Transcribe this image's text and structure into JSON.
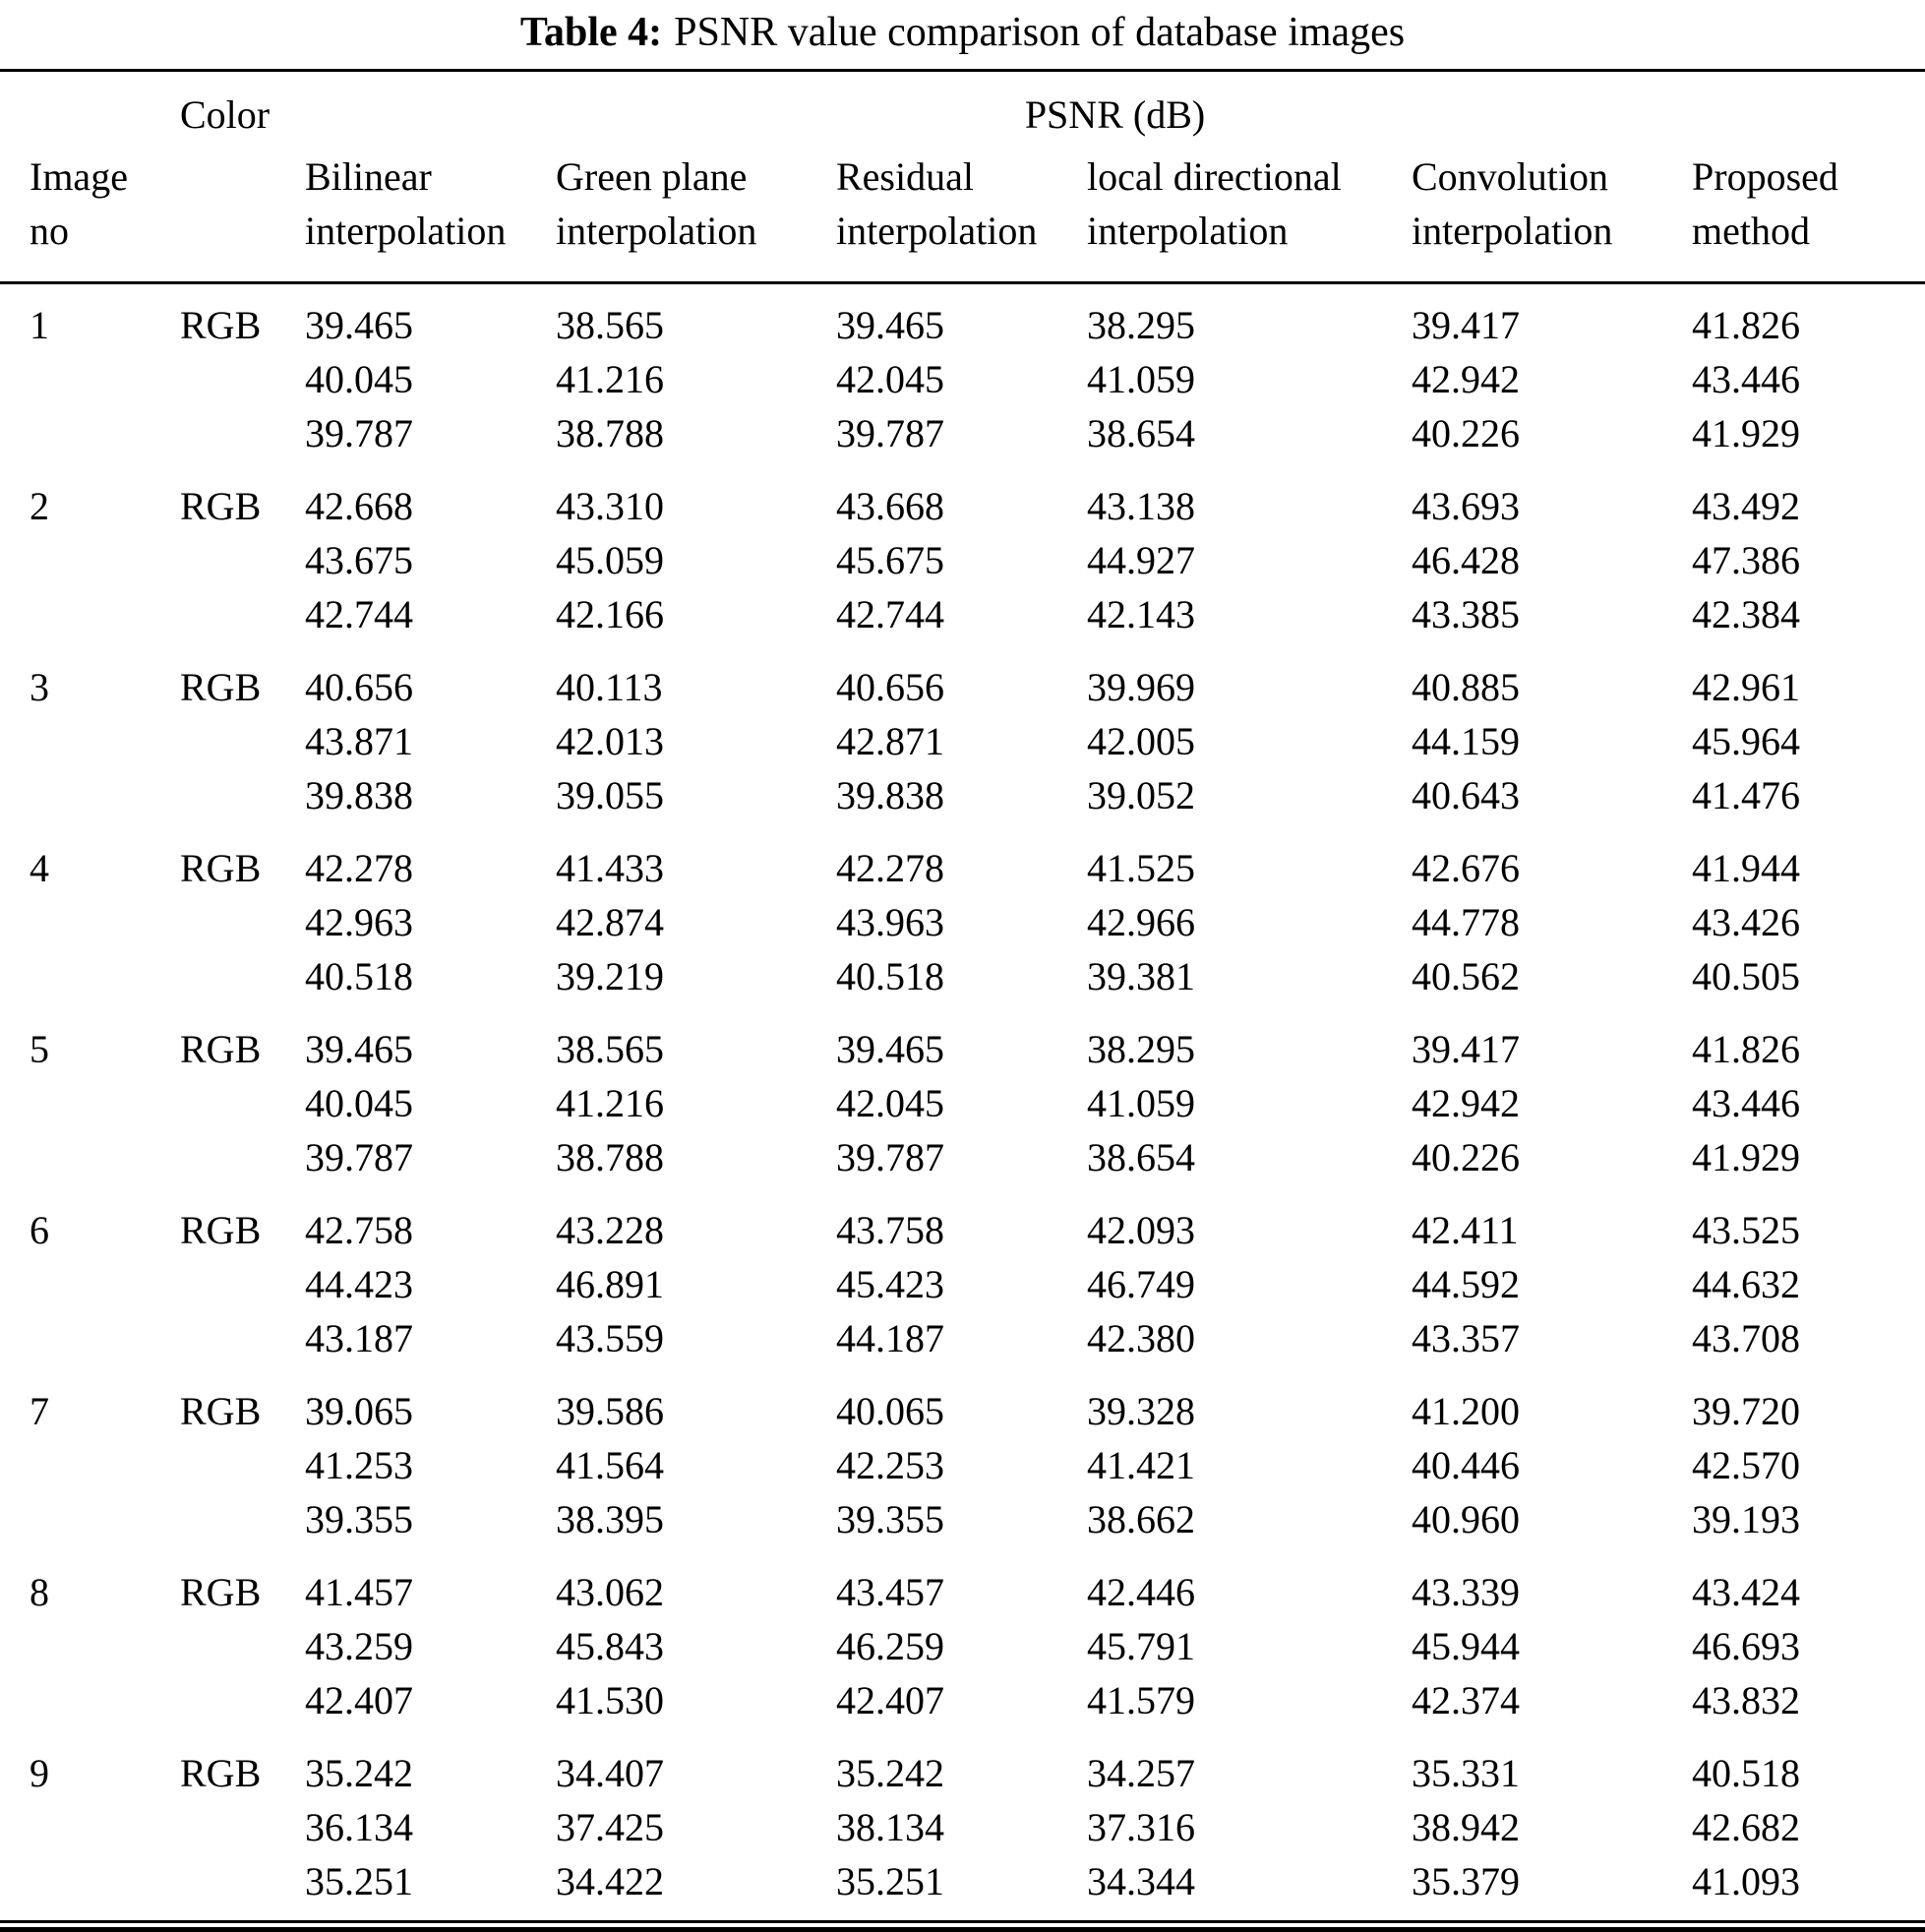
{
  "title": {
    "label": "Table 4:",
    "text": "PSNR value comparison of database images"
  },
  "header": {
    "color_label": "Color",
    "psnr_label": "PSNR (dB)",
    "image_col": {
      "line1": "Image",
      "line2": "no"
    },
    "methods": [
      {
        "line1": "Bilinear",
        "line2": "interpolation"
      },
      {
        "line1": "Green plane",
        "line2": "interpolation"
      },
      {
        "line1": "Residual",
        "line2": "interpolation"
      },
      {
        "line1": "local directional",
        "line2": "interpolation"
      },
      {
        "line1": "Convolution",
        "line2": "interpolation"
      },
      {
        "line1": "Proposed",
        "line2": "method"
      }
    ]
  },
  "rows": [
    {
      "image_no": "1",
      "color": "RGB",
      "values": [
        [
          "39.465",
          "40.045",
          "39.787"
        ],
        [
          "38.565",
          "41.216",
          "38.788"
        ],
        [
          "39.465",
          "42.045",
          "39.787"
        ],
        [
          "38.295",
          "41.059",
          "38.654"
        ],
        [
          "39.417",
          "42.942",
          "40.226"
        ],
        [
          "41.826",
          "43.446",
          "41.929"
        ]
      ]
    },
    {
      "image_no": "2",
      "color": "RGB",
      "values": [
        [
          "42.668",
          "43.675",
          "42.744"
        ],
        [
          "43.310",
          "45.059",
          "42.166"
        ],
        [
          "43.668",
          "45.675",
          "42.744"
        ],
        [
          "43.138",
          "44.927",
          "42.143"
        ],
        [
          "43.693",
          "46.428",
          "43.385"
        ],
        [
          "43.492",
          "47.386",
          "42.384"
        ]
      ]
    },
    {
      "image_no": "3",
      "color": "RGB",
      "values": [
        [
          "40.656",
          "43.871",
          "39.838"
        ],
        [
          "40.113",
          "42.013",
          "39.055"
        ],
        [
          "40.656",
          "42.871",
          "39.838"
        ],
        [
          "39.969",
          "42.005",
          "39.052"
        ],
        [
          "40.885",
          "44.159",
          "40.643"
        ],
        [
          "42.961",
          "45.964",
          "41.476"
        ]
      ]
    },
    {
      "image_no": "4",
      "color": "RGB",
      "values": [
        [
          "42.278",
          "42.963",
          "40.518"
        ],
        [
          "41.433",
          "42.874",
          "39.219"
        ],
        [
          "42.278",
          "43.963",
          "40.518"
        ],
        [
          "41.525",
          "42.966",
          "39.381"
        ],
        [
          "42.676",
          "44.778",
          "40.562"
        ],
        [
          "41.944",
          "43.426",
          "40.505"
        ]
      ]
    },
    {
      "image_no": "5",
      "color": "RGB",
      "values": [
        [
          "39.465",
          "40.045",
          "39.787"
        ],
        [
          "38.565",
          "41.216",
          "38.788"
        ],
        [
          "39.465",
          "42.045",
          "39.787"
        ],
        [
          "38.295",
          "41.059",
          "38.654"
        ],
        [
          "39.417",
          "42.942",
          "40.226"
        ],
        [
          "41.826",
          "43.446",
          "41.929"
        ]
      ]
    },
    {
      "image_no": "6",
      "color": "RGB",
      "values": [
        [
          "42.758",
          "44.423",
          "43.187"
        ],
        [
          "43.228",
          "46.891",
          "43.559"
        ],
        [
          "43.758",
          "45.423",
          "44.187"
        ],
        [
          "42.093",
          "46.749",
          "42.380"
        ],
        [
          "42.411",
          "44.592",
          "43.357"
        ],
        [
          "43.525",
          "44.632",
          "43.708"
        ]
      ]
    },
    {
      "image_no": "7",
      "color": "RGB",
      "values": [
        [
          "39.065",
          "41.253",
          "39.355"
        ],
        [
          "39.586",
          "41.564",
          "38.395"
        ],
        [
          "40.065",
          "42.253",
          "39.355"
        ],
        [
          "39.328",
          "41.421",
          "38.662"
        ],
        [
          "41.200",
          "40.446",
          "40.960"
        ],
        [
          "39.720",
          "42.570",
          "39.193"
        ]
      ]
    },
    {
      "image_no": "8",
      "color": "RGB",
      "values": [
        [
          "41.457",
          "43.259",
          "42.407"
        ],
        [
          "43.062",
          "45.843",
          "41.530"
        ],
        [
          "43.457",
          "46.259",
          "42.407"
        ],
        [
          "42.446",
          "45.791",
          "41.579"
        ],
        [
          "43.339",
          "45.944",
          "42.374"
        ],
        [
          "43.424",
          "46.693",
          "43.832"
        ]
      ]
    },
    {
      "image_no": "9",
      "color": "RGB",
      "values": [
        [
          "35.242",
          "36.134",
          "35.251"
        ],
        [
          "34.407",
          "37.425",
          "34.422"
        ],
        [
          "35.242",
          "38.134",
          "35.251"
        ],
        [
          "34.257",
          "37.316",
          "34.344"
        ],
        [
          "35.331",
          "38.942",
          "35.379"
        ],
        [
          "40.518",
          "42.682",
          "41.093"
        ]
      ]
    }
  ]
}
